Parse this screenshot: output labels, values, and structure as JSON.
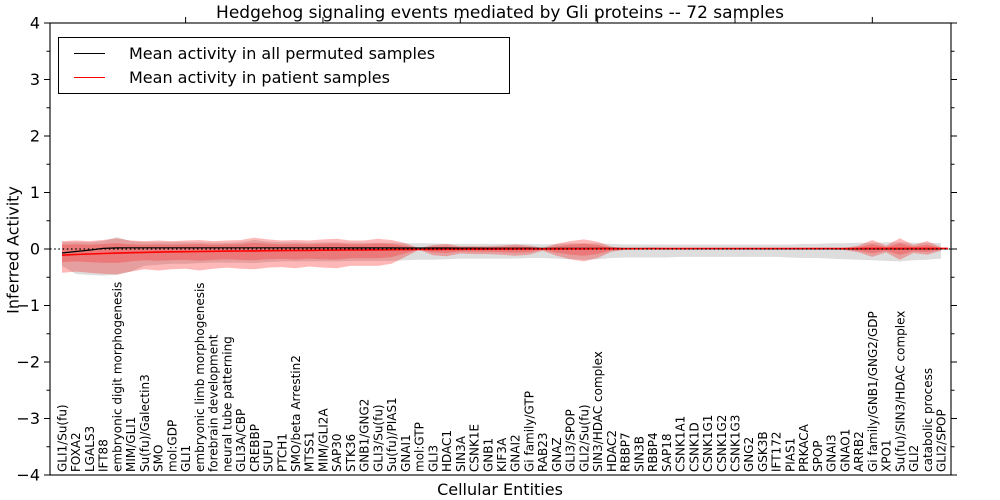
{
  "chart_data": {
    "type": "line",
    "title": "Hedgehog signaling events mediated by Gli proteins -- 72 samples",
    "xlabel": "Cellular Entities",
    "ylabel": "Inferred Activity",
    "ylim": [
      -4,
      4
    ],
    "ytick_values": [
      4,
      3,
      2,
      1,
      0,
      -1,
      -2,
      -3,
      -4
    ],
    "ytick_labels": [
      "4",
      "3",
      "2",
      "1",
      "0",
      "−1",
      "−2",
      "−3",
      "−4"
    ],
    "ytick_minor_values": [
      -3.5,
      -2.5,
      -1.5,
      -0.5,
      0.5,
      1.5,
      2.5,
      3.5
    ],
    "grid": false,
    "legend_position": "upper left",
    "baseline": 0,
    "baseline_style": "dotted",
    "colors": {
      "permuted": "#000000",
      "patient": "#ff0000",
      "permuted_band": "#808080",
      "patient_band": "#ff0000",
      "frame": "#000000"
    },
    "categories": [
      "GLI1/Su(fu)",
      "FOXA2",
      "LGALS3",
      "IFT88",
      "embryonic digit morphogenesis",
      "MIM/GLI1",
      "Su(fu)/Galectin3",
      "SMO",
      "mol:GDP",
      "GLI1",
      "embryonic limb morphogenesis",
      "forebrain development",
      "neural tube patterning",
      "GLI3A/CBP",
      "CREBBP",
      "SUFU",
      "PTCH1",
      "SMO/beta Arrestin2",
      "MTSS1",
      "MIM/GLI2A",
      "SAP30",
      "STK36",
      "GNB1/GNG2",
      "GLI3/Su(fu)",
      "Su(fu)/PIAS1",
      "GNAI1",
      "mol:GTP",
      "GLI3",
      "HDAC1",
      "SIN3A",
      "CSNK1E",
      "GNB1",
      "KIF3A",
      "GNAI2",
      "Gi family/GTP",
      "RAB23",
      "GNAZ",
      "GLI3/SPOP",
      "GLI2/Su(fu)",
      "SIN3/HDAC complex",
      "HDAC2",
      "RBBP7",
      "SIN3B",
      "RBBP4",
      "SAP18",
      "CSNK1A1",
      "CSNK1D",
      "CSNK1G1",
      "CSNK1G2",
      "CSNK1G3",
      "GNG2",
      "GSK3B",
      "IFT172",
      "PIAS1",
      "PRKACA",
      "SPOP",
      "GNAI3",
      "GNAO1",
      "ARRB2",
      "Gi family/GNB1/GNG2/GDP",
      "XPO1",
      "Su(fu)/SIN3/HDAC complex",
      "GLI2",
      "catabolic process",
      "GLI2/SPOP"
    ],
    "series": [
      {
        "name": "Mean activity in all permuted samples",
        "color": "#000000",
        "width": 1.2,
        "values": [
          -0.07,
          -0.045,
          -0.02,
          0.01,
          0.02,
          0.022,
          0.022,
          0.022,
          0.022,
          0.022,
          0.022,
          0.022,
          0.022,
          0.022,
          0.022,
          0.022,
          0.022,
          0.022,
          0.022,
          0.022,
          0.022,
          0.02,
          0.02,
          0.02,
          0.02,
          0.018,
          0.018,
          0.018,
          0.018,
          0.016,
          0.016,
          0.015,
          0.015,
          0.015,
          0.014,
          0.013,
          0.013,
          0.012,
          0.012,
          0.011,
          0.01,
          0.009,
          0.008,
          0.008,
          0.007,
          0.007,
          0.006,
          0.006,
          0.005,
          0.005,
          0.005,
          0.004,
          0.004,
          0.004,
          0.003,
          0.003,
          0.003,
          0.003,
          0.002,
          0.002,
          0.002,
          0.002,
          0.002,
          0.002,
          0.002
        ]
      },
      {
        "name": "Mean activity in patient samples",
        "color": "#ff0000",
        "width": 1.6,
        "values": [
          -0.11,
          -0.098,
          -0.088,
          -0.08,
          -0.072,
          -0.066,
          -0.06,
          -0.055,
          -0.05,
          -0.047,
          -0.044,
          -0.041,
          -0.038,
          -0.035,
          -0.033,
          -0.03,
          -0.028,
          -0.026,
          -0.024,
          -0.022,
          -0.02,
          -0.018,
          -0.016,
          -0.014,
          -0.012,
          -0.01,
          -0.008,
          -0.007,
          -0.006,
          -0.005,
          -0.004,
          -0.003,
          -0.002,
          -0.001,
          0.0,
          0.001,
          0.002,
          0.003,
          0.004,
          0.005,
          0.005,
          0.006,
          0.006,
          0.007,
          0.007,
          0.007,
          0.008,
          0.008,
          0.008,
          0.008,
          0.008,
          0.008,
          0.008,
          0.008,
          0.009,
          0.009,
          0.009,
          0.009,
          0.009,
          0.01,
          0.01,
          0.01,
          0.01,
          0.01,
          0.01
        ]
      }
    ],
    "bands": [
      {
        "name": "permuted-sample-range",
        "color": "#808080",
        "opacity": 0.27,
        "inner_scale": 0,
        "hi": [
          0.12,
          0.13,
          0.12,
          0.14,
          0.21,
          0.14,
          0.12,
          0.12,
          0.12,
          0.12,
          0.12,
          0.11,
          0.11,
          0.12,
          0.16,
          0.13,
          0.12,
          0.12,
          0.11,
          0.12,
          0.12,
          0.11,
          0.11,
          0.11,
          0.11,
          0.1,
          0.1,
          0.1,
          0.09,
          0.09,
          0.09,
          0.09,
          0.09,
          0.09,
          0.09,
          0.08,
          0.09,
          0.1,
          0.1,
          0.1,
          0.09,
          0.08,
          0.08,
          0.08,
          0.08,
          0.08,
          0.08,
          0.08,
          0.08,
          0.08,
          0.08,
          0.08,
          0.08,
          0.08,
          0.09,
          0.09,
          0.1,
          0.1,
          0.11,
          0.11,
          0.12,
          0.12,
          0.11,
          0.11,
          0.1
        ],
        "lo": [
          -0.3,
          -0.44,
          -0.46,
          -0.47,
          -0.46,
          -0.4,
          -0.3,
          -0.28,
          -0.26,
          -0.26,
          -0.25,
          -0.24,
          -0.24,
          -0.24,
          -0.25,
          -0.23,
          -0.22,
          -0.22,
          -0.22,
          -0.22,
          -0.22,
          -0.21,
          -0.21,
          -0.21,
          -0.21,
          -0.2,
          -0.19,
          -0.19,
          -0.18,
          -0.17,
          -0.17,
          -0.17,
          -0.17,
          -0.17,
          -0.16,
          -0.16,
          -0.17,
          -0.18,
          -0.19,
          -0.18,
          -0.16,
          -0.15,
          -0.15,
          -0.15,
          -0.15,
          -0.14,
          -0.14,
          -0.14,
          -0.14,
          -0.14,
          -0.14,
          -0.14,
          -0.14,
          -0.15,
          -0.16,
          -0.16,
          -0.17,
          -0.18,
          -0.19,
          -0.2,
          -0.21,
          -0.22,
          -0.2,
          -0.19,
          -0.17
        ]
      },
      {
        "name": "patient-sample-range",
        "color": "#ff0000",
        "opacity": 0.28,
        "inner_scale": 0.55,
        "hi": [
          0.14,
          0.15,
          0.14,
          0.16,
          0.19,
          0.15,
          0.14,
          0.15,
          0.14,
          0.15,
          0.16,
          0.14,
          0.15,
          0.16,
          0.2,
          0.17,
          0.15,
          0.16,
          0.15,
          0.17,
          0.18,
          0.15,
          0.15,
          0.18,
          0.16,
          0.1,
          0.015,
          0.07,
          0.09,
          0.05,
          0.05,
          0.05,
          0.06,
          0.08,
          0.06,
          0.02,
          0.09,
          0.14,
          0.17,
          0.13,
          0.04,
          0.015,
          0.01,
          0.01,
          0.01,
          0.01,
          0.01,
          0.01,
          0.01,
          0.01,
          0.01,
          0.01,
          0.01,
          0.01,
          0.01,
          0.01,
          0.01,
          0.02,
          0.06,
          0.16,
          0.06,
          0.19,
          0.07,
          0.14,
          0.03
        ],
        "lo": [
          -0.42,
          -0.4,
          -0.42,
          -0.44,
          -0.45,
          -0.4,
          -0.36,
          -0.38,
          -0.36,
          -0.35,
          -0.38,
          -0.35,
          -0.33,
          -0.35,
          -0.36,
          -0.33,
          -0.32,
          -0.34,
          -0.31,
          -0.33,
          -0.34,
          -0.3,
          -0.3,
          -0.3,
          -0.26,
          -0.14,
          -0.015,
          -0.11,
          -0.13,
          -0.08,
          -0.09,
          -0.09,
          -0.1,
          -0.12,
          -0.1,
          -0.03,
          -0.12,
          -0.18,
          -0.22,
          -0.16,
          -0.05,
          -0.015,
          -0.01,
          -0.01,
          -0.01,
          -0.01,
          -0.01,
          -0.01,
          -0.01,
          -0.01,
          -0.01,
          -0.01,
          -0.01,
          -0.01,
          -0.01,
          -0.01,
          -0.01,
          -0.02,
          -0.06,
          -0.14,
          -0.06,
          -0.19,
          -0.07,
          -0.1,
          -0.03
        ]
      }
    ]
  },
  "legend": {
    "items": [
      {
        "label": "Mean activity in all permuted samples",
        "color": "#000000"
      },
      {
        "label": "Mean activity in patient samples",
        "color": "#ff0000"
      }
    ]
  }
}
